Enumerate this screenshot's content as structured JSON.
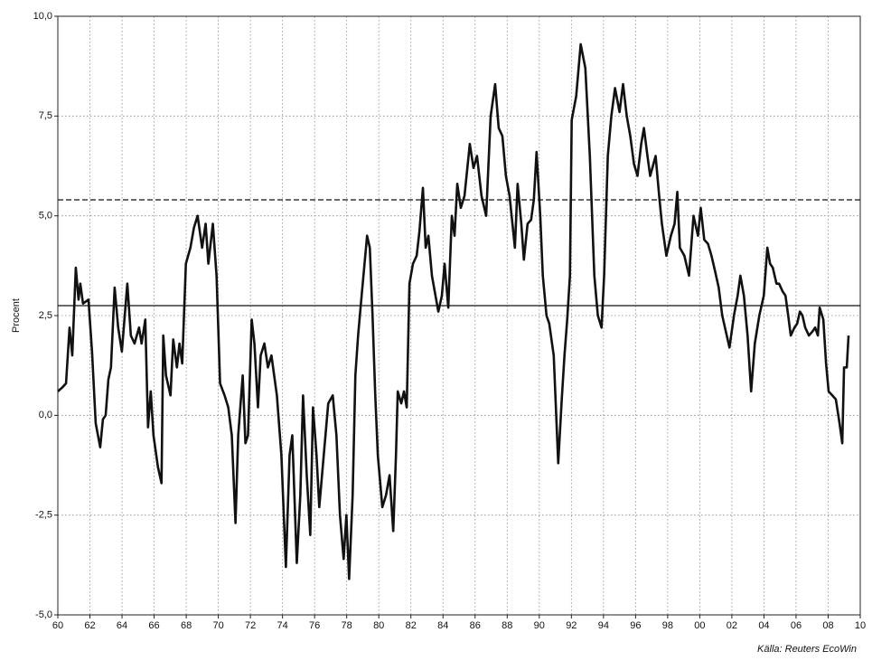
{
  "chart_data": {
    "type": "line",
    "y_label": "Procent",
    "source": "Källa: Reuters EcoWin",
    "xlim": [
      1960,
      2010
    ],
    "xticks": [
      {
        "value": 1960,
        "label": "60"
      },
      {
        "value": 1962,
        "label": "62"
      },
      {
        "value": 1964,
        "label": "64"
      },
      {
        "value": 1966,
        "label": "66"
      },
      {
        "value": 1968,
        "label": "68"
      },
      {
        "value": 1970,
        "label": "70"
      },
      {
        "value": 1972,
        "label": "72"
      },
      {
        "value": 1974,
        "label": "74"
      },
      {
        "value": 1976,
        "label": "76"
      },
      {
        "value": 1978,
        "label": "78"
      },
      {
        "value": 1980,
        "label": "80"
      },
      {
        "value": 1982,
        "label": "82"
      },
      {
        "value": 1984,
        "label": "84"
      },
      {
        "value": 1986,
        "label": "86"
      },
      {
        "value": 1988,
        "label": "88"
      },
      {
        "value": 1990,
        "label": "90"
      },
      {
        "value": 1992,
        "label": "92"
      },
      {
        "value": 1994,
        "label": "94"
      },
      {
        "value": 1996,
        "label": "96"
      },
      {
        "value": 1998,
        "label": "98"
      },
      {
        "value": 2000,
        "label": "00"
      },
      {
        "value": 2002,
        "label": "02"
      },
      {
        "value": 2004,
        "label": "04"
      },
      {
        "value": 2006,
        "label": "06"
      },
      {
        "value": 2008,
        "label": "08"
      },
      {
        "value": 2010,
        "label": "10"
      }
    ],
    "ylim": [
      -5,
      10
    ],
    "yticks": [
      {
        "value": -5,
        "label": "-5,0"
      },
      {
        "value": -2.5,
        "label": "-2,5"
      },
      {
        "value": 0,
        "label": "0,0"
      },
      {
        "value": 2.5,
        "label": "2,5"
      },
      {
        "value": 5,
        "label": "5,0"
      },
      {
        "value": 7.5,
        "label": "7,5"
      },
      {
        "value": 10,
        "label": "10,0"
      }
    ],
    "grid": true,
    "hlines": [
      {
        "value": 2.75,
        "style": "solid"
      },
      {
        "value": 5.4,
        "style": "dashed"
      }
    ],
    "series": [
      {
        "color": "#111111",
        "x": [
          1960.0,
          1960.28,
          1960.51,
          1960.73,
          1960.9,
          1961.12,
          1961.29,
          1961.4,
          1961.57,
          1961.91,
          1962.13,
          1962.36,
          1962.64,
          1962.81,
          1962.98,
          1963.15,
          1963.31,
          1963.54,
          1963.76,
          1963.99,
          1964.33,
          1964.55,
          1964.78,
          1965.06,
          1965.22,
          1965.45,
          1965.62,
          1965.79,
          1965.96,
          1966.24,
          1966.46,
          1966.57,
          1966.74,
          1967.02,
          1967.19,
          1967.42,
          1967.58,
          1967.75,
          1967.98,
          1968.26,
          1968.48,
          1968.71,
          1968.99,
          1969.21,
          1969.38,
          1969.66,
          1969.89,
          1970.11,
          1970.39,
          1970.62,
          1970.84,
          1971.07,
          1971.24,
          1971.52,
          1971.69,
          1971.85,
          1972.08,
          1972.25,
          1972.47,
          1972.64,
          1972.87,
          1973.09,
          1973.31,
          1973.48,
          1973.65,
          1973.93,
          1974.21,
          1974.44,
          1974.61,
          1974.89,
          1975.11,
          1975.28,
          1975.51,
          1975.73,
          1975.9,
          1976.12,
          1976.29,
          1976.57,
          1976.85,
          1977.13,
          1977.36,
          1977.58,
          1977.81,
          1977.98,
          1978.15,
          1978.37,
          1978.54,
          1978.71,
          1978.93,
          1979.27,
          1979.44,
          1979.61,
          1979.78,
          1979.94,
          1980.22,
          1980.45,
          1980.67,
          1980.9,
          1981.07,
          1981.18,
          1981.4,
          1981.57,
          1981.74,
          1981.91,
          1982.13,
          1982.36,
          1982.53,
          1982.75,
          1982.92,
          1983.09,
          1983.31,
          1983.71,
          1983.93,
          1984.1,
          1984.33,
          1984.55,
          1984.72,
          1984.89,
          1985.11,
          1985.34,
          1985.67,
          1985.9,
          1986.12,
          1986.4,
          1986.69,
          1986.97,
          1987.25,
          1987.47,
          1987.7,
          1987.92,
          1988.15,
          1988.48,
          1988.65,
          1988.88,
          1989.04,
          1989.27,
          1989.49,
          1989.66,
          1989.83,
          1990.06,
          1990.22,
          1990.45,
          1990.62,
          1990.9,
          1991.18,
          1991.4,
          1991.57,
          1991.74,
          1991.91,
          1992.02,
          1992.3,
          1992.58,
          1992.87,
          1993.15,
          1993.43,
          1993.65,
          1993.88,
          1994.04,
          1994.27,
          1994.49,
          1994.72,
          1995.0,
          1995.22,
          1995.45,
          1995.67,
          1995.9,
          1996.12,
          1996.35,
          1996.52,
          1996.74,
          1996.91,
          1997.25,
          1997.47,
          1997.64,
          1997.92,
          1998.2,
          1998.43,
          1998.6,
          1998.76,
          1999.04,
          1999.33,
          1999.61,
          1999.89,
          2000.06,
          2000.28,
          2000.51,
          2000.73,
          2000.96,
          2001.18,
          2001.4,
          2001.57,
          2001.85,
          2002.13,
          2002.36,
          2002.53,
          2002.75,
          2002.98,
          2003.2,
          2003.43,
          2003.71,
          2003.99,
          2004.21,
          2004.38,
          2004.55,
          2004.78,
          2004.94,
          2005.17,
          2005.34,
          2005.51,
          2005.67,
          2005.9,
          2006.07,
          2006.24,
          2006.4,
          2006.57,
          2006.8,
          2007.02,
          2007.19,
          2007.36,
          2007.47,
          2007.7,
          2007.87,
          2008.03,
          2008.26,
          2008.48,
          2008.71,
          2008.88,
          2008.99,
          2009.16,
          2009.27
        ],
        "values": [
          0.6,
          0.7,
          0.8,
          2.2,
          1.5,
          3.7,
          2.9,
          3.3,
          2.8,
          2.9,
          1.6,
          -0.2,
          -0.8,
          -0.1,
          0.0,
          0.9,
          1.2,
          3.2,
          2.2,
          1.6,
          3.3,
          2.0,
          1.8,
          2.2,
          1.8,
          2.4,
          -0.3,
          0.6,
          -0.5,
          -1.3,
          -1.7,
          2.0,
          1.0,
          0.5,
          1.9,
          1.2,
          1.8,
          1.3,
          3.8,
          4.2,
          4.7,
          5.0,
          4.2,
          4.8,
          3.8,
          4.8,
          3.5,
          0.8,
          0.5,
          0.2,
          -0.5,
          -2.7,
          -0.5,
          1.0,
          -0.7,
          -0.5,
          2.4,
          1.8,
          0.2,
          1.5,
          1.8,
          1.2,
          1.5,
          1.0,
          0.5,
          -1.0,
          -3.8,
          -1.0,
          -0.5,
          -3.7,
          -2.0,
          0.5,
          -1.5,
          -3.0,
          0.2,
          -1.0,
          -2.3,
          -1.0,
          0.3,
          0.5,
          -0.5,
          -2.5,
          -3.6,
          -2.5,
          -4.1,
          -2.0,
          1.0,
          2.0,
          3.0,
          4.5,
          4.2,
          2.5,
          0.5,
          -1.0,
          -2.3,
          -2.0,
          -1.5,
          -2.9,
          -1.0,
          0.6,
          0.3,
          0.6,
          0.2,
          3.3,
          3.8,
          4.0,
          4.6,
          5.7,
          4.2,
          4.5,
          3.5,
          2.6,
          3.0,
          3.8,
          2.7,
          5.0,
          4.5,
          5.8,
          5.2,
          5.5,
          6.8,
          6.2,
          6.5,
          5.5,
          5.0,
          7.5,
          8.3,
          7.2,
          7.0,
          6.0,
          5.5,
          4.2,
          5.8,
          4.8,
          3.9,
          4.8,
          4.9,
          5.4,
          6.6,
          5.0,
          3.5,
          2.5,
          2.3,
          1.5,
          -1.2,
          0.4,
          1.5,
          2.4,
          3.5,
          7.4,
          8.0,
          9.3,
          8.7,
          6.5,
          3.5,
          2.5,
          2.2,
          3.5,
          6.5,
          7.5,
          8.2,
          7.6,
          8.3,
          7.5,
          7.0,
          6.3,
          6.0,
          6.8,
          7.2,
          6.5,
          6.0,
          6.5,
          5.5,
          4.8,
          4.0,
          4.5,
          4.8,
          5.6,
          4.2,
          4.0,
          3.5,
          5.0,
          4.5,
          5.2,
          4.4,
          4.3,
          4.0,
          3.6,
          3.2,
          2.5,
          2.2,
          1.7,
          2.5,
          3.0,
          3.5,
          3.0,
          2.0,
          0.6,
          1.8,
          2.5,
          3.0,
          4.2,
          3.8,
          3.7,
          3.3,
          3.3,
          3.1,
          3.0,
          2.5,
          2.0,
          2.2,
          2.3,
          2.6,
          2.5,
          2.2,
          2.0,
          2.1,
          2.2,
          2.0,
          2.7,
          2.4,
          1.3,
          0.6,
          0.5,
          0.4,
          -0.2,
          -0.7,
          1.2,
          1.2,
          2.0
        ]
      }
    ]
  }
}
